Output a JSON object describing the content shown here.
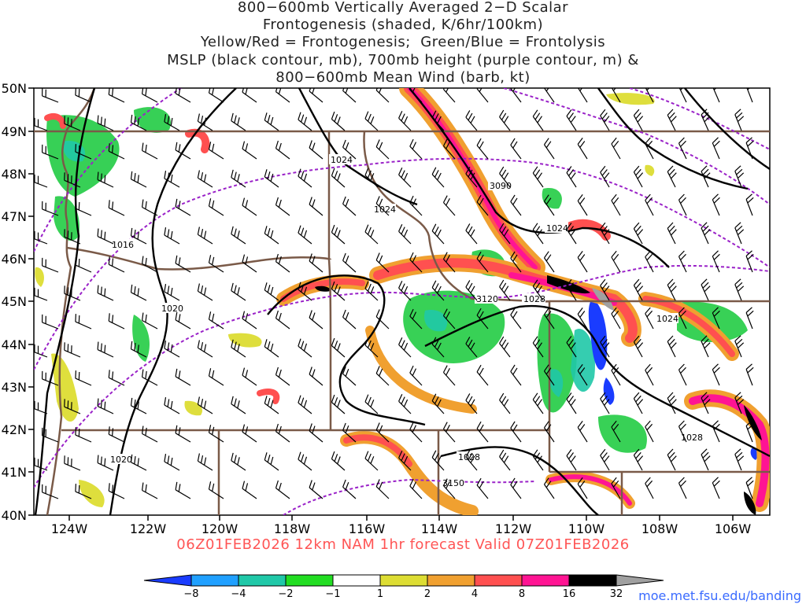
{
  "title_lines": [
    "800−600mb Vertically Averaged 2−D Scalar",
    "Frontogenesis (shaded, K/6hr/100km)",
    "Yellow/Red = Frontogenesis;  Green/Blue = Frontolysis",
    "MSLP (black contour, mb), 700mb height (purple contour, m) &",
    "800−600mb Mean Wind (barb, kt)"
  ],
  "valid_line": "06Z01FEB2026 12km NAM 1hr forecast Valid 07Z01FEB2026",
  "url": "moe.met.fsu.edu/banding",
  "lat_labels": [
    "50N",
    "49N",
    "48N",
    "47N",
    "46N",
    "45N",
    "44N",
    "43N",
    "42N",
    "41N",
    "40N"
  ],
  "lon_labels": [
    "124W",
    "122W",
    "120W",
    "118W",
    "116W",
    "114W",
    "112W",
    "110W",
    "108W",
    "106W"
  ],
  "contour_labels": {
    "mslp": [
      "1024",
      "1024",
      "1024",
      "1016",
      "1020",
      "1028",
      "1024",
      "1028",
      "1020",
      "1028"
    ],
    "height": [
      "3090",
      "3120",
      "3150"
    ]
  },
  "colorbar": {
    "ticks": [
      "−8",
      "−4",
      "−2",
      "−1",
      "1",
      "2",
      "4",
      "8",
      "16",
      "32"
    ],
    "colors": [
      "#1a3cff",
      "#20a0ff",
      "#20c8a8",
      "#22cc44",
      "#22dd22",
      "#ffffff",
      "#dddd33",
      "#f0a030",
      "#ff5050",
      "#ff1493",
      "#000000",
      "#a0a0a0"
    ]
  },
  "contour_colors": {
    "mslp": "#000000",
    "height": "#9a22c8",
    "borders": "#7a5a48"
  }
}
